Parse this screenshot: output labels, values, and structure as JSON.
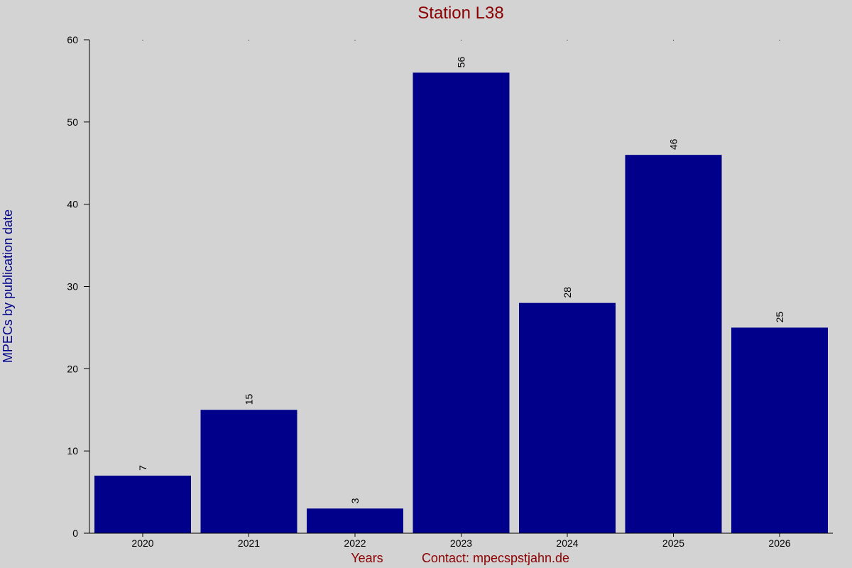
{
  "chart_data": {
    "type": "bar",
    "title": "Station L38",
    "xlabel": "Years",
    "ylabel": "MPECs by publication date",
    "contact": "Contact: mpecspstjahn.de",
    "categories": [
      "2020",
      "2021",
      "2022",
      "2023",
      "2024",
      "2025",
      "2026"
    ],
    "values": [
      7,
      15,
      3,
      56,
      28,
      46,
      25
    ],
    "value_labels": [
      "7",
      "15",
      "3",
      "56",
      "28",
      "46",
      "25"
    ],
    "ylim": [
      0,
      60
    ],
    "yticks": [
      0,
      10,
      20,
      30,
      40,
      50,
      60
    ],
    "ytick_labels": [
      "0",
      "10",
      "20",
      "30",
      "40",
      "50",
      "60"
    ],
    "grid": false,
    "legend": "none"
  },
  "colors": {
    "background": "#d3d3d3",
    "bar": "#00008b",
    "title": "#8b0000",
    "ylabel": "#00008b",
    "xlabel": "#8b0000",
    "axis": "#000000"
  }
}
